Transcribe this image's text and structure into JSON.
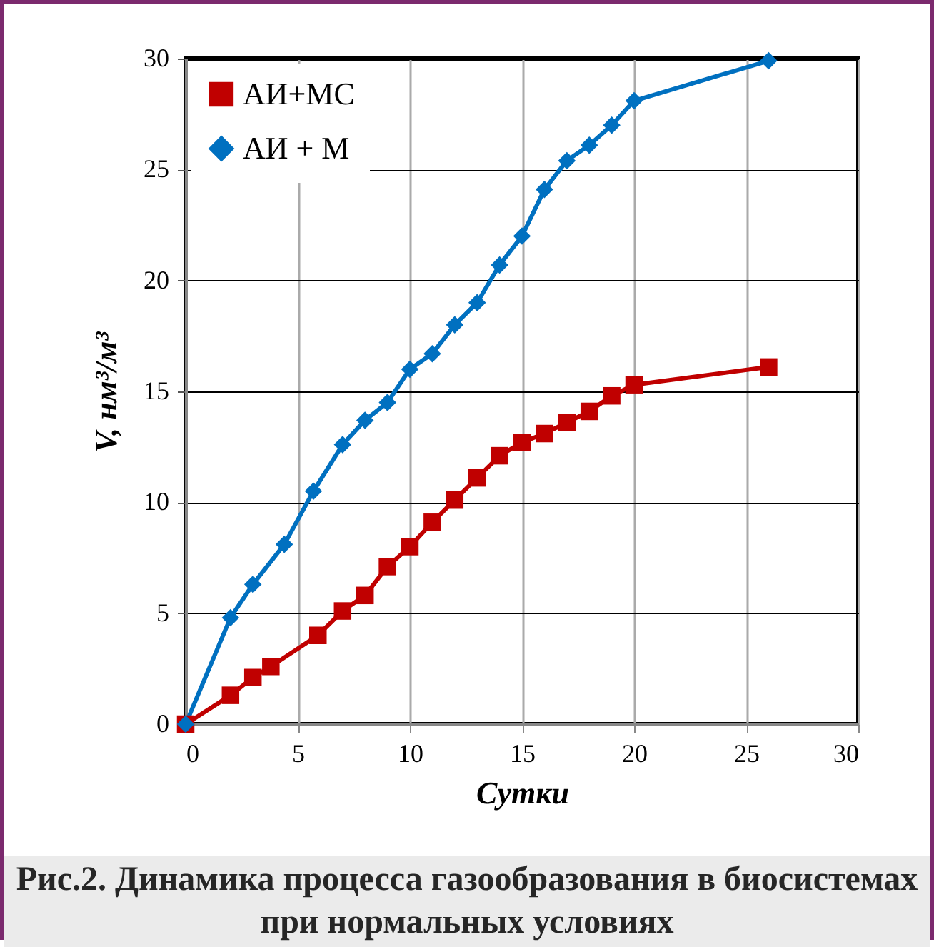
{
  "chart_data": {
    "type": "line",
    "title": "Рис.2.  Динамика процесса газообразования в биосистемах при нормальных условиях",
    "xlabel": "Сутки",
    "ylabel": "V, нм³/м³",
    "xlim": [
      0,
      30
    ],
    "ylim": [
      0,
      30
    ],
    "xticks": [
      0,
      5,
      10,
      15,
      20,
      25,
      30
    ],
    "yticks": [
      0,
      5,
      10,
      15,
      20,
      25,
      30
    ],
    "grid": true,
    "legend": "top left",
    "line_style": "solid",
    "series": [
      {
        "name": "АИ+МС",
        "color": "#c00000",
        "marker": "square",
        "x": [
          0,
          2,
          3,
          3.8,
          5.9,
          7,
          8,
          9,
          10,
          11,
          12,
          13,
          14,
          15,
          16,
          17,
          18,
          19,
          20,
          26
        ],
        "values": [
          0,
          1.3,
          2.1,
          2.6,
          4,
          5.1,
          5.8,
          7.1,
          8,
          9.1,
          10.1,
          11.1,
          12.1,
          12.7,
          13.1,
          13.6,
          14.1,
          14.8,
          15.3,
          16.1
        ]
      },
      {
        "name": "АИ + М",
        "color": "#0070c0",
        "marker": "diamond",
        "x": [
          0,
          2,
          3,
          4.4,
          5.7,
          7,
          8,
          9,
          10,
          11,
          12,
          13,
          14,
          15,
          16,
          17,
          18,
          19,
          20,
          26
        ],
        "values": [
          0,
          4.8,
          6.3,
          8.1,
          10.5,
          12.6,
          13.7,
          14.5,
          16,
          16.7,
          18,
          19,
          20.7,
          22,
          24.1,
          25.4,
          26.1,
          27,
          28.1,
          29.9
        ]
      }
    ]
  }
}
